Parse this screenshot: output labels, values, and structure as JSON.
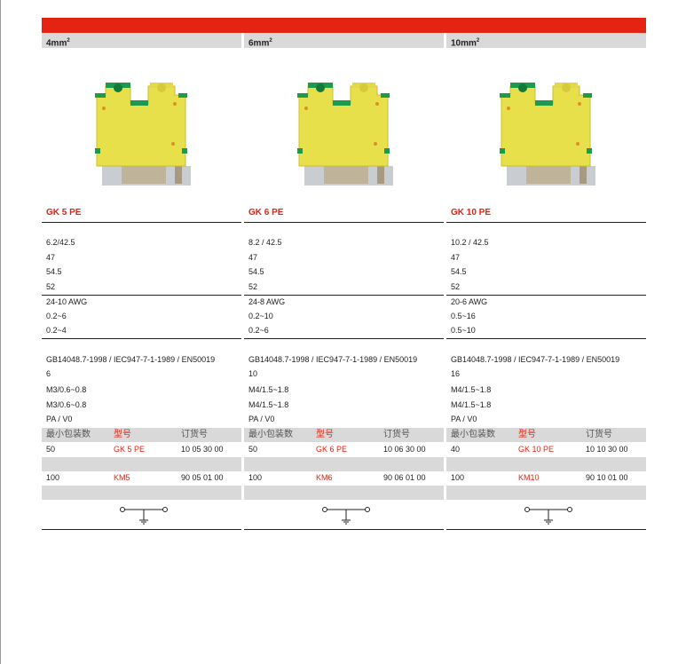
{
  "columns": [
    {
      "size": "4mm",
      "title": "GK 5 PE",
      "dims": [
        "6.2/42.5",
        "47",
        "54.5",
        "52"
      ],
      "wire": [
        "24-10 AWG",
        "0.2~6",
        "0.2~4"
      ],
      "standard": "GB14048.7-1998 / IEC947-7-1-1989 / EN50019",
      "rated": "6",
      "screw1": "M3/0.6~0.8",
      "screw2": "M3/0.6~0.8",
      "material": "PA / V0",
      "order": {
        "headers": [
          "最小包装数",
          "型号",
          "订货号"
        ],
        "rows": [
          [
            "50",
            "GK 5 PE",
            "10 05 30 00"
          ],
          [
            "100",
            "KM5",
            "90 05 01 00"
          ]
        ]
      }
    },
    {
      "size": "6mm",
      "title": "GK 6 PE",
      "dims": [
        "8.2 / 42.5",
        "47",
        "54.5",
        "52"
      ],
      "wire": [
        "24-8 AWG",
        "0.2~10",
        "0.2~6"
      ],
      "standard": "GB14048.7-1998 / IEC947-7-1-1989 / EN50019",
      "rated": "10",
      "screw1": "M4/1.5~1.8",
      "screw2": "M4/1.5~1.8",
      "material": "PA / V0",
      "order": {
        "headers": [
          "最小包装数",
          "型号",
          "订货号"
        ],
        "rows": [
          [
            "50",
            "GK 6 PE",
            "10 06 30 00"
          ],
          [
            "100",
            "KM6",
            "90 06 01 00"
          ]
        ]
      }
    },
    {
      "size": "10mm",
      "title": "GK 10 PE",
      "dims": [
        "10.2 / 42.5",
        "47",
        "54.5",
        "52"
      ],
      "wire": [
        "20-6 AWG",
        "0.5~16",
        "0.5~10"
      ],
      "standard": "GB14048.7-1998 / IEC947-7-1-1989 / EN50019",
      "rated": "16",
      "screw1": "M4/1.5~1.8",
      "screw2": "M4/1.5~1.8",
      "material": "PA / V0",
      "order": {
        "headers": [
          "最小包装数",
          "型号",
          "订货号"
        ],
        "rows": [
          [
            "40",
            "GK 10 PE",
            "10 10 30 00"
          ],
          [
            "100",
            "KM10",
            "90 10 01 00"
          ]
        ]
      }
    }
  ],
  "colors": {
    "accent": "#e42313",
    "band": "#d9d9d9",
    "terminal_yellow": "#e8e04a",
    "terminal_green": "#1f9a4a"
  }
}
